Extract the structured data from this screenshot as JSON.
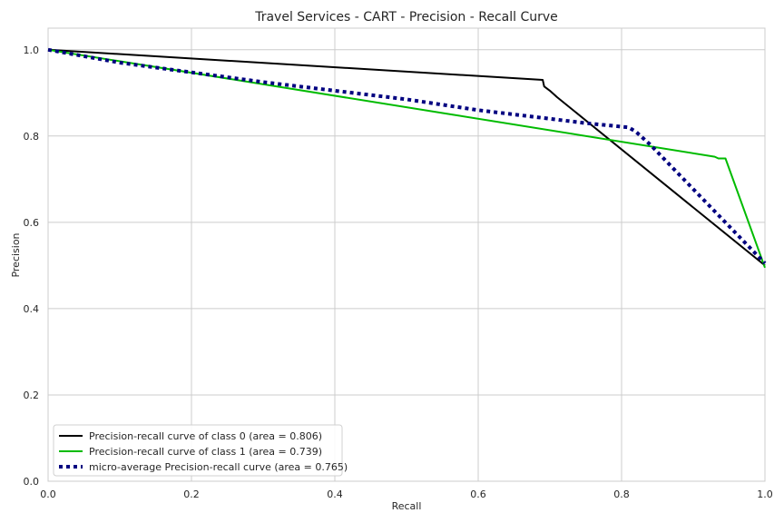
{
  "chart_data": {
    "type": "line",
    "title": "Travel Services - CART - Precision - Recall Curve",
    "xlabel": "Recall",
    "ylabel": "Precision",
    "xlim": [
      0.0,
      1.0
    ],
    "ylim": [
      0.0,
      1.05
    ],
    "xticks": [
      "0.0",
      "0.2",
      "0.4",
      "0.6",
      "0.8",
      "1.0"
    ],
    "yticks": [
      "0.0",
      "0.2",
      "0.4",
      "0.6",
      "0.8",
      "1.0"
    ],
    "xtick_values": [
      0.0,
      0.2,
      0.4,
      0.6,
      0.8,
      1.0
    ],
    "ytick_values": [
      0.0,
      0.2,
      0.4,
      0.6,
      0.8,
      1.0
    ],
    "grid": true,
    "legend_position": "lower-left",
    "series": [
      {
        "name": "Precision-recall curve of class 0 (area = 0.806)",
        "color": "#000000",
        "style": "solid",
        "x": [
          0.0,
          0.69,
          0.692,
          0.7,
          0.71,
          1.0
        ],
        "y": [
          1.0,
          0.93,
          0.915,
          0.905,
          0.89,
          0.5
        ]
      },
      {
        "name": "Precision-recall curve of class 1 (area = 0.739)",
        "color": "#00bb00",
        "style": "solid",
        "x": [
          0.0,
          0.93,
          0.935,
          0.945,
          1.0
        ],
        "y": [
          1.0,
          0.752,
          0.748,
          0.748,
          0.495
        ]
      },
      {
        "name": "micro-average Precision-recall curve (area = 0.765)",
        "color": "#000080",
        "style": "dotted",
        "x": [
          0.0,
          0.1,
          0.3,
          0.5,
          0.6,
          0.7,
          0.75,
          0.81,
          0.82,
          0.84,
          1.0
        ],
        "y": [
          1.0,
          0.97,
          0.925,
          0.885,
          0.86,
          0.84,
          0.83,
          0.82,
          0.81,
          0.78,
          0.505
        ]
      }
    ]
  }
}
